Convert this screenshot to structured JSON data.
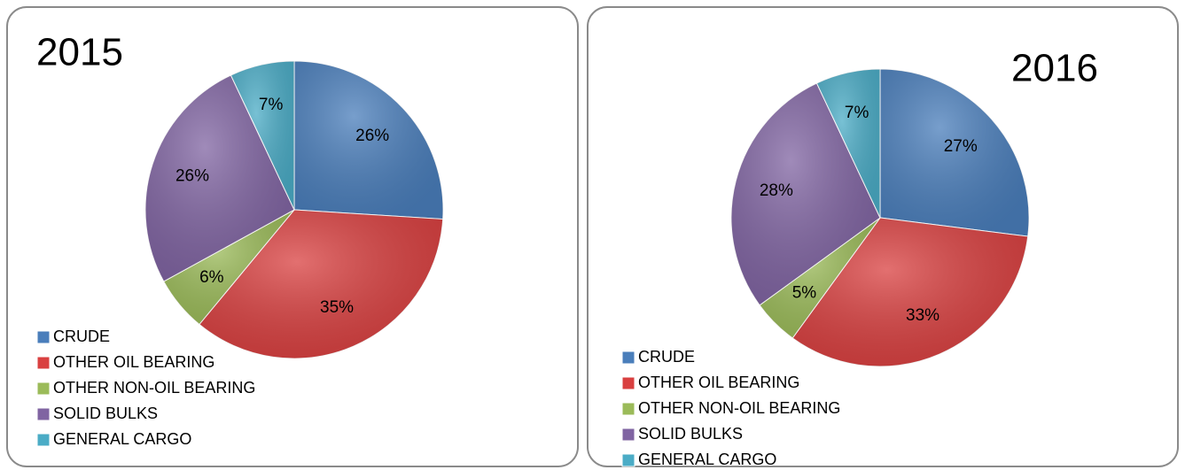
{
  "chart_data": [
    {
      "type": "pie",
      "title": "2015",
      "categories": [
        "CRUDE",
        "OTHER OIL BEARING",
        "OTHER NON-OIL BEARING",
        "SOLID BULKS",
        "GENERAL CARGO"
      ],
      "values": [
        26,
        35,
        6,
        26,
        7
      ],
      "value_labels": [
        "26%",
        "35%",
        "6%",
        "26%",
        "7%"
      ],
      "colors": [
        "#4a7ebb",
        "#d94040",
        "#9bbb59",
        "#8064a2",
        "#4bacc6"
      ]
    },
    {
      "type": "pie",
      "title": "2016",
      "categories": [
        "CRUDE",
        "OTHER OIL BEARING",
        "OTHER NON-OIL BEARING",
        "SOLID BULKS",
        "GENERAL CARGO"
      ],
      "values": [
        27,
        33,
        5,
        28,
        7
      ],
      "value_labels": [
        "27%",
        "33%",
        "5%",
        "28%",
        "7%"
      ],
      "colors": [
        "#4a7ebb",
        "#d94040",
        "#9bbb59",
        "#8064a2",
        "#4bacc6"
      ]
    }
  ]
}
